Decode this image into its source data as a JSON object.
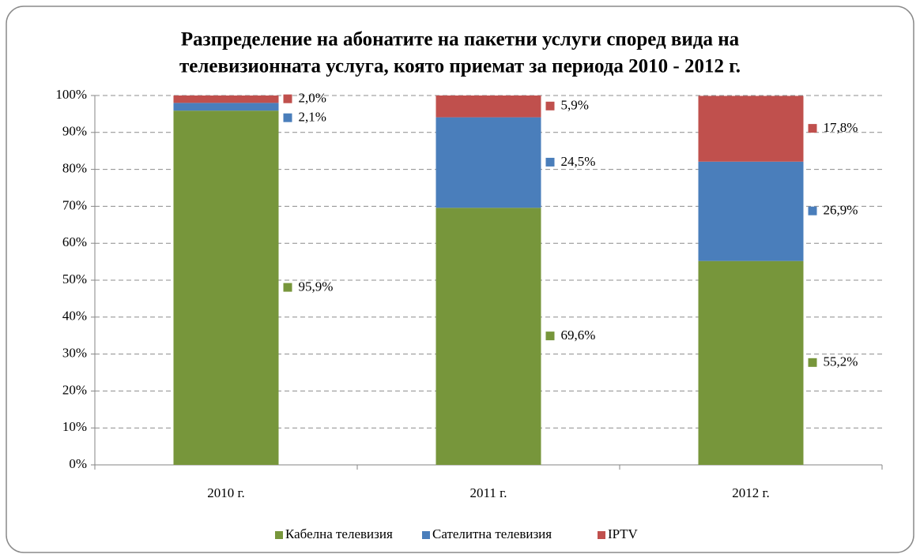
{
  "chart_data": {
    "type": "stacked_bar",
    "title": [
      "Разпределение на абонатите на пакетни услуги според вида на",
      "телевизионната услуга, която приемат за периода 2010 - 2012 г."
    ],
    "categories": [
      "2010 г.",
      "2011 г.",
      "2012 г."
    ],
    "series": [
      {
        "name": "Кабелна телевизия",
        "color": "#77963b",
        "values": [
          95.9,
          69.6,
          55.2
        ],
        "value_labels": [
          "95,9%",
          "69,6%",
          "55,2%"
        ]
      },
      {
        "name": "Сателитна телевизия",
        "color": "#4a7ebb",
        "values": [
          2.1,
          24.5,
          26.9
        ],
        "value_labels": [
          "2,1%",
          "24,5%",
          "26,9%"
        ]
      },
      {
        "name": "IPTV",
        "color": "#c0504d",
        "values": [
          2.0,
          5.9,
          17.8
        ],
        "value_labels": [
          "2,0%",
          "5,9%",
          "17,8%"
        ]
      }
    ],
    "ylim": [
      0,
      100
    ],
    "yticks": [
      {
        "value": 0,
        "label": "0%"
      },
      {
        "value": 10,
        "label": "10%"
      },
      {
        "value": 20,
        "label": "20%"
      },
      {
        "value": 30,
        "label": "30%"
      },
      {
        "value": 40,
        "label": "40%"
      },
      {
        "value": 50,
        "label": "50%"
      },
      {
        "value": 60,
        "label": "60%"
      },
      {
        "value": 70,
        "label": "70%"
      },
      {
        "value": 80,
        "label": "80%"
      },
      {
        "value": 90,
        "label": "90%"
      },
      {
        "value": 100,
        "label": "100%"
      }
    ],
    "grid": true,
    "legend": "bottom"
  }
}
